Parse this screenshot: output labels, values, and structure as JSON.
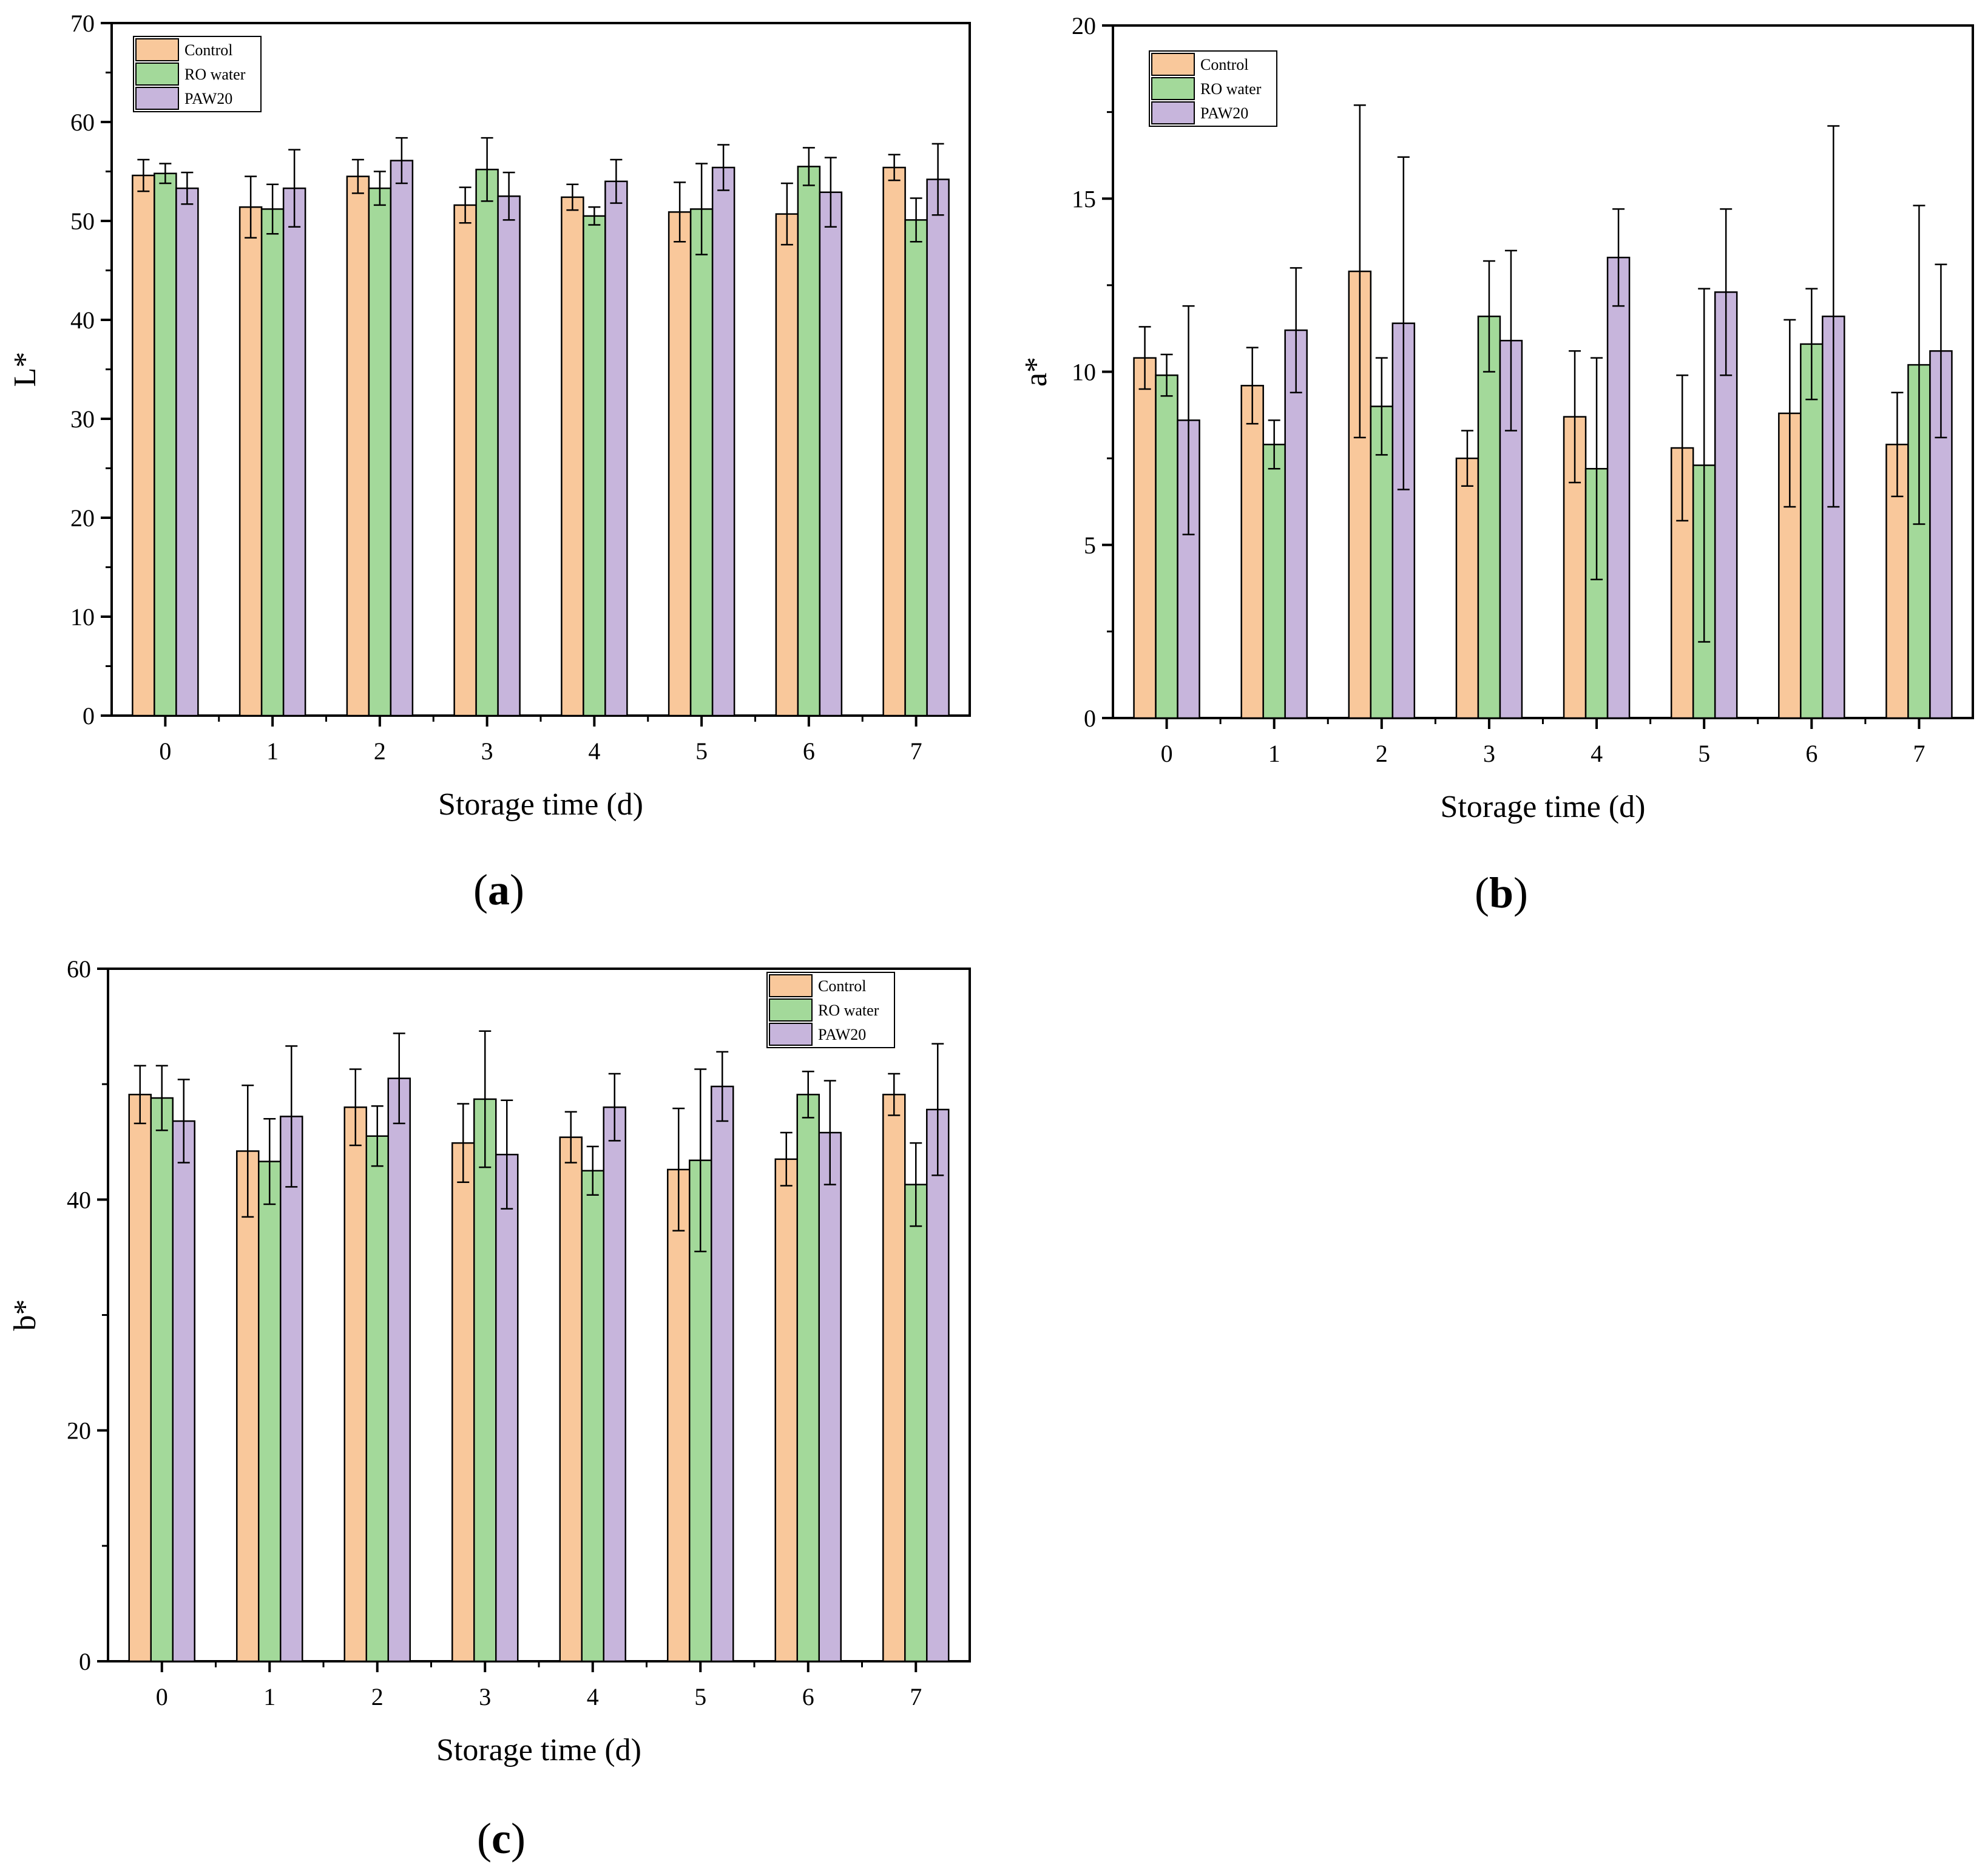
{
  "colors": {
    "Control": "#f9c89b",
    "RO water": "#a3d99a",
    "PAW20": "#c7b5dc",
    "axis": "#000000"
  },
  "series_names": [
    "Control",
    "RO water",
    "PAW20"
  ],
  "chart_data": [
    {
      "id": "a",
      "type": "bar",
      "panel_label": "a",
      "xlabel": "Storage time (d)",
      "ylabel": "L*",
      "ylim": [
        0,
        70
      ],
      "yticks": [
        0,
        10,
        20,
        30,
        40,
        50,
        60,
        70
      ],
      "categories": [
        "0",
        "1",
        "2",
        "3",
        "4",
        "5",
        "6",
        "7"
      ],
      "legend": [
        "Control",
        "RO water",
        "PAW20"
      ],
      "legend_position": "top-left",
      "series": [
        {
          "name": "Control",
          "values": [
            54.6,
            51.4,
            54.5,
            51.6,
            52.4,
            50.9,
            50.7,
            55.4
          ],
          "errors": [
            1.6,
            3.1,
            1.7,
            1.8,
            1.3,
            3.0,
            3.1,
            1.3
          ]
        },
        {
          "name": "RO water",
          "values": [
            54.8,
            51.2,
            53.3,
            55.2,
            50.5,
            51.2,
            55.5,
            50.1
          ],
          "errors": [
            1.0,
            2.5,
            1.7,
            3.2,
            0.9,
            4.6,
            1.9,
            2.2
          ]
        },
        {
          "name": "PAW20",
          "values": [
            53.3,
            53.3,
            56.1,
            52.5,
            54.0,
            55.4,
            52.9,
            54.2
          ],
          "errors": [
            1.6,
            3.9,
            2.3,
            2.4,
            2.2,
            2.3,
            3.5,
            3.6
          ]
        }
      ]
    },
    {
      "id": "b",
      "type": "bar",
      "panel_label": "b",
      "xlabel": "Storage time (d)",
      "ylabel": "a*",
      "ylim": [
        0,
        20
      ],
      "yticks": [
        0,
        5,
        10,
        15,
        20
      ],
      "categories": [
        "0",
        "1",
        "2",
        "3",
        "4",
        "5",
        "6",
        "7"
      ],
      "legend": [
        "Control",
        "RO water",
        "PAW20"
      ],
      "legend_position": "top-left",
      "series": [
        {
          "name": "Control",
          "values": [
            10.4,
            9.6,
            12.9,
            7.5,
            8.7,
            7.8,
            8.8,
            7.9
          ],
          "errors": [
            0.9,
            1.1,
            4.8,
            0.8,
            1.9,
            2.1,
            2.7,
            1.5
          ]
        },
        {
          "name": "RO water",
          "values": [
            9.9,
            7.9,
            9.0,
            11.6,
            7.2,
            7.3,
            10.8,
            10.2
          ],
          "errors": [
            0.6,
            0.7,
            1.4,
            1.6,
            3.2,
            5.1,
            1.6,
            4.6
          ]
        },
        {
          "name": "PAW20",
          "values": [
            8.6,
            11.2,
            11.4,
            10.9,
            13.3,
            12.3,
            11.6,
            10.6
          ],
          "errors": [
            3.3,
            1.8,
            4.8,
            2.6,
            1.4,
            2.4,
            5.5,
            2.5
          ]
        }
      ]
    },
    {
      "id": "c",
      "type": "bar",
      "panel_label": "c",
      "xlabel": "Storage time (d)",
      "ylabel": "b*",
      "ylim": [
        0,
        60
      ],
      "yticks": [
        0,
        20,
        40,
        60
      ],
      "categories": [
        "0",
        "1",
        "2",
        "3",
        "4",
        "5",
        "6",
        "7"
      ],
      "legend": [
        "Control",
        "RO water",
        "PAW20"
      ],
      "legend_position": "top-right",
      "series": [
        {
          "name": "Control",
          "values": [
            49.1,
            44.2,
            48.0,
            44.9,
            45.4,
            42.6,
            43.5,
            49.1
          ],
          "errors": [
            2.5,
            5.7,
            3.3,
            3.4,
            2.2,
            5.3,
            2.3,
            1.8
          ]
        },
        {
          "name": "RO water",
          "values": [
            48.8,
            43.3,
            45.5,
            48.7,
            42.5,
            43.4,
            49.1,
            41.3
          ],
          "errors": [
            2.8,
            3.7,
            2.6,
            5.9,
            2.1,
            7.9,
            2.0,
            3.6
          ]
        },
        {
          "name": "PAW20",
          "values": [
            46.8,
            47.2,
            50.5,
            43.9,
            48.0,
            49.8,
            45.8,
            47.8
          ],
          "errors": [
            3.6,
            6.1,
            3.9,
            4.7,
            2.9,
            3.0,
            4.5,
            5.7
          ]
        }
      ]
    }
  ]
}
